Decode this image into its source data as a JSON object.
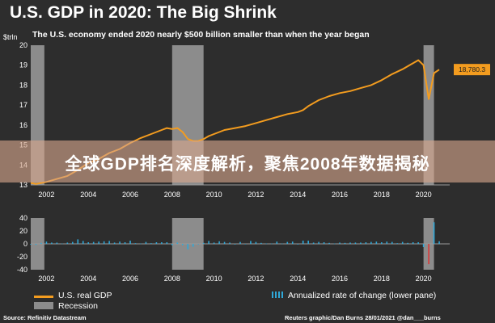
{
  "title": "U.S. GDP in 2020: The Big Shrink",
  "subtitle": "The U.S. economy ended 2020 nearly $500 billion smaller than when the year began",
  "banner": "全球GDP排名深度解析，聚焦2008年数据揭秘",
  "legend": {
    "gdp": "U.S. real GDP",
    "recession": "Recession",
    "rate": "Annualized rate of change (lower pane)"
  },
  "source": "Source: Refinitiv Datastream",
  "credit": "Reuters graphic/Dan Burns 28/01/2021 @dan___burns",
  "colors": {
    "gdp_line": "#f39c1f",
    "rate_bar": "#2fa8d8",
    "rate_bar_negative": "#d93a3a",
    "recession": "#8c8c8c",
    "background": "#2d2d2d",
    "last_value_badge": "#f39c1f"
  },
  "chart_data": [
    {
      "type": "line",
      "title": "U.S. GDP in 2020: The Big Shrink",
      "ylabel": "$trln",
      "unit": "$trln",
      "ylim": [
        13,
        20
      ],
      "yticks": [
        13,
        14,
        15,
        16,
        17,
        18,
        19,
        20
      ],
      "xlim": [
        2001.25,
        2021.25
      ],
      "xticks": [
        2002,
        2004,
        2006,
        2008,
        2010,
        2012,
        2014,
        2016,
        2018,
        2020
      ],
      "grid": false,
      "recessions": [
        [
          2001.25,
          2001.9
        ],
        [
          2008.0,
          2009.5
        ],
        [
          2020.0,
          2020.5
        ]
      ],
      "last_value_label": "18,780.3",
      "series": [
        {
          "name": "U.S. real GDP",
          "x": [
            2001.25,
            2001.5,
            2001.75,
            2002.0,
            2002.5,
            2003.0,
            2003.5,
            2004.0,
            2004.5,
            2005.0,
            2005.5,
            2006.0,
            2006.5,
            2007.0,
            2007.5,
            2007.75,
            2008.0,
            2008.25,
            2008.5,
            2008.75,
            2009.0,
            2009.25,
            2009.5,
            2009.75,
            2010.0,
            2010.5,
            2011.0,
            2011.5,
            2012.0,
            2012.5,
            2013.0,
            2013.5,
            2014.0,
            2014.25,
            2014.5,
            2015.0,
            2015.5,
            2016.0,
            2016.5,
            2017.0,
            2017.5,
            2018.0,
            2018.5,
            2019.0,
            2019.5,
            2019.75,
            2020.0,
            2020.25,
            2020.5,
            2020.75
          ],
          "y": [
            13.1,
            13.05,
            13.1,
            13.15,
            13.3,
            13.45,
            13.75,
            14.1,
            14.3,
            14.6,
            14.8,
            15.1,
            15.35,
            15.55,
            15.75,
            15.85,
            15.8,
            15.85,
            15.65,
            15.3,
            15.2,
            15.2,
            15.3,
            15.45,
            15.55,
            15.75,
            15.85,
            15.95,
            16.1,
            16.25,
            16.4,
            16.55,
            16.65,
            16.75,
            16.95,
            17.25,
            17.45,
            17.6,
            17.7,
            17.85,
            18.0,
            18.25,
            18.55,
            18.8,
            19.1,
            19.25,
            19.0,
            17.3,
            18.6,
            18.78
          ]
        }
      ]
    },
    {
      "type": "bar",
      "title": "",
      "ylabel": "Annualized rate of change (lower pane)",
      "ylim": [
        -40,
        40
      ],
      "yticks": [
        40,
        20,
        0,
        -20,
        -40
      ],
      "xlim": [
        2001.25,
        2021.25
      ],
      "xticks": [
        2002,
        2004,
        2006,
        2008,
        2010,
        2012,
        2014,
        2016,
        2018,
        2020
      ],
      "grid": false,
      "series": [
        {
          "name": "Annualized rate of change (lower pane)",
          "x": [
            2001.25,
            2001.5,
            2001.75,
            2002.0,
            2002.25,
            2002.5,
            2002.75,
            2003.0,
            2003.25,
            2003.5,
            2003.75,
            2004.0,
            2004.25,
            2004.5,
            2004.75,
            2005.0,
            2005.25,
            2005.5,
            2005.75,
            2006.0,
            2006.25,
            2006.5,
            2006.75,
            2007.0,
            2007.25,
            2007.5,
            2007.75,
            2008.0,
            2008.25,
            2008.5,
            2008.75,
            2009.0,
            2009.25,
            2009.5,
            2009.75,
            2010.0,
            2010.25,
            2010.5,
            2010.75,
            2011.0,
            2011.25,
            2011.5,
            2011.75,
            2012.0,
            2012.25,
            2012.5,
            2012.75,
            2013.0,
            2013.25,
            2013.5,
            2013.75,
            2014.0,
            2014.25,
            2014.5,
            2014.75,
            2015.0,
            2015.25,
            2015.5,
            2015.75,
            2016.0,
            2016.25,
            2016.5,
            2016.75,
            2017.0,
            2017.25,
            2017.5,
            2017.75,
            2018.0,
            2018.25,
            2018.5,
            2018.75,
            2019.0,
            2019.25,
            2019.5,
            2019.75,
            2020.0,
            2020.25,
            2020.5,
            2020.75
          ],
          "values": [
            -1,
            -1.5,
            1.5,
            3.5,
            2,
            2,
            0.5,
            2,
            3,
            7,
            4.5,
            2.5,
            3,
            3.5,
            4,
            4.5,
            2,
            3.5,
            2.5,
            5,
            1,
            0.5,
            3,
            1,
            2.5,
            2.5,
            2.5,
            -2,
            2,
            -2,
            -8.5,
            -4.5,
            -0.5,
            1.5,
            4.5,
            2,
            4,
            3,
            2,
            -1,
            3,
            0,
            4.5,
            3,
            1.5,
            0.5,
            0.5,
            3.5,
            0.5,
            3,
            3.5,
            -1,
            5,
            5,
            2,
            3,
            2.5,
            1.5,
            0.5,
            2,
            1.5,
            2,
            2,
            2,
            2.5,
            3,
            3.5,
            2.5,
            3.5,
            3,
            1,
            3,
            1.5,
            2.5,
            2.5,
            -5,
            -31.4,
            33.4,
            4
          ]
        }
      ]
    }
  ]
}
